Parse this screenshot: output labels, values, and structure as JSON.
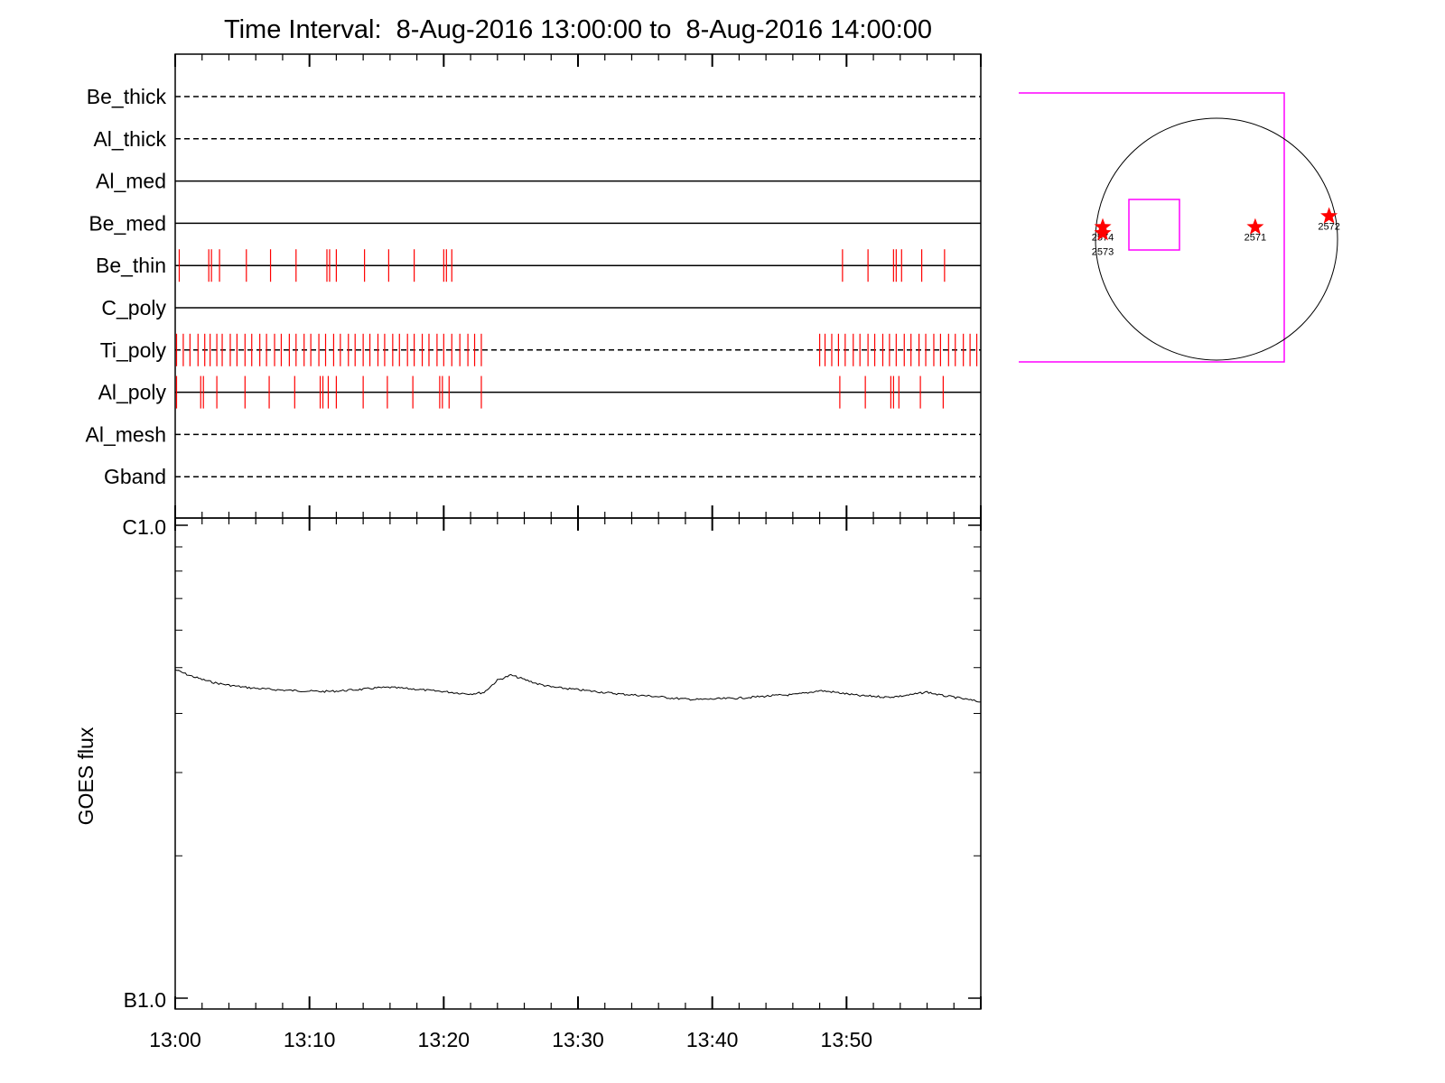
{
  "chart_data": [
    {
      "type": "table",
      "title": "Time Interval:  8-Aug-2016 13:00:00 to  8-Aug-2016 14:00:00",
      "x_range_minutes": [
        0,
        60
      ],
      "rows": [
        {
          "label": "Be_thick",
          "line": "dashed",
          "marks_minutes": []
        },
        {
          "label": "Al_thick",
          "line": "dashed",
          "marks_minutes": []
        },
        {
          "label": "Al_med",
          "line": "solid",
          "marks_minutes": []
        },
        {
          "label": "Be_med",
          "line": "solid",
          "marks_minutes": []
        },
        {
          "label": "Be_thin",
          "line": "solid",
          "marks_minutes": [
            0.3,
            2.5,
            2.7,
            3.3,
            5.3,
            7.1,
            9.0,
            11.3,
            11.5,
            12.0,
            14.1,
            15.9,
            17.8,
            20.0,
            20.2,
            20.6,
            49.7,
            51.6,
            53.5,
            53.7,
            54.1,
            55.6,
            57.3
          ]
        },
        {
          "label": "C_poly",
          "line": "solid",
          "marks_minutes": []
        },
        {
          "label": "Ti_poly",
          "line": "dashed",
          "marks_minutes": [
            0.1,
            0.6,
            1.1,
            1.7,
            2.2,
            2.6,
            3.1,
            3.5,
            4.1,
            4.6,
            5.2,
            5.7,
            6.3,
            6.8,
            7.4,
            7.9,
            8.5,
            9.0,
            9.6,
            10.1,
            10.7,
            11.2,
            11.8,
            12.3,
            12.9,
            13.4,
            14.0,
            14.5,
            15.1,
            15.6,
            16.2,
            16.7,
            17.3,
            17.8,
            18.4,
            18.9,
            19.5,
            20.0,
            20.6,
            21.2,
            21.8,
            22.3,
            22.8,
            48.0,
            48.4,
            48.9,
            49.4,
            49.9,
            50.5,
            51.0,
            51.6,
            52.1,
            52.7,
            53.2,
            53.7,
            54.3,
            54.8,
            55.4,
            55.9,
            56.5,
            57.0,
            57.6,
            58.1,
            58.7,
            59.2,
            59.7
          ]
        },
        {
          "label": "Al_poly",
          "line": "solid",
          "marks_minutes": [
            0.1,
            1.9,
            2.1,
            3.1,
            5.2,
            7.0,
            8.9,
            10.8,
            11.0,
            11.4,
            12.0,
            14.0,
            15.8,
            17.7,
            19.7,
            19.9,
            20.4,
            22.8,
            49.5,
            51.4,
            53.3,
            53.5,
            53.9,
            55.5,
            57.2
          ]
        },
        {
          "label": "Al_mesh",
          "line": "dashed",
          "marks_minutes": []
        },
        {
          "label": "Gband",
          "line": "dashed",
          "marks_minutes": []
        }
      ],
      "series_color": "#ff0000"
    },
    {
      "type": "line",
      "ylabel": "GOES flux",
      "ytick_labels": [
        "C1.0",
        "B1.0"
      ],
      "yscale": "log",
      "ylim": [
        1e-06,
        1e-07
      ],
      "x_range_minutes": [
        0,
        60
      ],
      "xtick_labels": [
        "13:00",
        "13:10",
        "13:20",
        "13:30",
        "13:40",
        "13:50"
      ],
      "xtick_minutes": [
        0,
        10,
        20,
        30,
        40,
        50
      ],
      "series": [
        {
          "x_minutes": [
            0,
            1,
            2,
            3,
            4,
            5,
            6,
            7,
            8,
            9,
            10,
            11,
            12,
            13,
            14,
            15,
            16,
            17,
            18,
            19,
            20,
            21,
            22,
            23,
            24,
            25,
            26,
            27,
            28,
            29,
            30,
            31,
            32,
            33,
            34,
            35,
            36,
            37,
            38,
            39,
            40,
            41,
            42,
            43,
            44,
            45,
            46,
            47,
            48,
            49,
            50,
            51,
            52,
            53,
            54,
            55,
            56,
            57,
            58,
            59,
            60
          ],
          "y": [
            4.95e-07,
            4.82e-07,
            4.72e-07,
            4.64e-07,
            4.59e-07,
            4.55e-07,
            4.52e-07,
            4.5e-07,
            4.48e-07,
            4.47e-07,
            4.46e-07,
            4.45e-07,
            4.46e-07,
            4.48e-07,
            4.5e-07,
            4.53e-07,
            4.54e-07,
            4.52e-07,
            4.5e-07,
            4.47e-07,
            4.45e-07,
            4.42e-07,
            4.4e-07,
            4.43e-07,
            4.7e-07,
            4.82e-07,
            4.72e-07,
            4.62e-07,
            4.55e-07,
            4.52e-07,
            4.49e-07,
            4.46e-07,
            4.43e-07,
            4.4e-07,
            4.38e-07,
            4.36e-07,
            4.34e-07,
            4.31e-07,
            4.29e-07,
            4.28e-07,
            4.29e-07,
            4.3e-07,
            4.31e-07,
            4.33e-07,
            4.35e-07,
            4.37e-07,
            4.38e-07,
            4.42e-07,
            4.47e-07,
            4.44e-07,
            4.4e-07,
            4.36e-07,
            4.35e-07,
            4.33e-07,
            4.35e-07,
            4.39e-07,
            4.44e-07,
            4.37e-07,
            4.33e-07,
            4.28e-07,
            4.23e-07
          ]
        }
      ]
    },
    {
      "type": "scatter",
      "points": [
        {
          "label": "2574",
          "x": -0.94,
          "y": 0.1
        },
        {
          "label": "2573",
          "x": -0.94,
          "y": 0.05
        },
        {
          "label": "2571",
          "x": 0.32,
          "y": 0.1
        },
        {
          "label": "2572",
          "x": 0.93,
          "y": 0.19
        }
      ],
      "marker_color": "#ff0000",
      "box_color": "#ff00ff"
    }
  ]
}
